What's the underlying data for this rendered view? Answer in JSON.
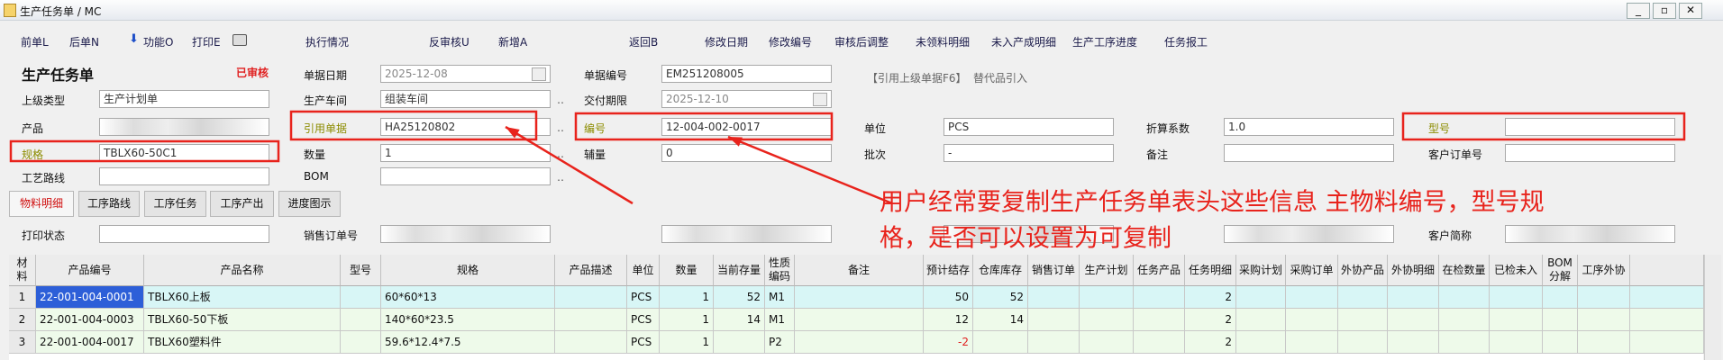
{
  "window": {
    "title": "生产任务单 / MC"
  },
  "toolbar": [
    "前单L",
    "后单N",
    "功能O",
    "打印E",
    "执行情况",
    "反审核U",
    "新增A",
    "返回B",
    "修改日期",
    "修改编号",
    "审核后调整",
    "未领料明细",
    "未入产成明细",
    "生产工序进度",
    "任务报工"
  ],
  "form": {
    "heading": "生产任务单",
    "status": "已审核",
    "links": [
      "【引用上级单据F6】",
      "替代品引入"
    ],
    "fields": [
      {
        "label": "单据日期",
        "value": "2025-12-08"
      },
      {
        "label": "单据编号",
        "value": "EM251208005"
      },
      {
        "label": "上级类型",
        "value": "生产计划单"
      },
      {
        "label": "生产车间",
        "value": "组装车间"
      },
      {
        "label": "交付期限",
        "value": "2025-12-10"
      },
      {
        "label": "产品"
      },
      {
        "label": "引用单据",
        "value": "HA25120802",
        "color": "#8c8c00"
      },
      {
        "label": "编号",
        "value": "12-004-002-0017",
        "color": "#8c8c00"
      },
      {
        "label": "单位",
        "value": "PCS"
      },
      {
        "label": "折算系数",
        "value": "1.0"
      },
      {
        "label": "型号",
        "color": "#8c8c00"
      },
      {
        "label": "规格",
        "value": "TBLX60-50C1",
        "color": "#8c8c00"
      },
      {
        "label": "数量",
        "value": "1"
      },
      {
        "label": "辅量",
        "value": "0"
      },
      {
        "label": "批次",
        "value": "-"
      },
      {
        "label": "备注"
      },
      {
        "label": "客户订单号"
      },
      {
        "label": "工艺路线"
      },
      {
        "label": "BOM"
      },
      {
        "label": "打印状态"
      },
      {
        "label": "销售订单号"
      },
      {
        "label": "客户简称"
      }
    ]
  },
  "tabs": [
    "物料明细",
    "工序路线",
    "工序任务",
    "工序产出",
    "进度图示"
  ],
  "table": {
    "headers": [
      "材料",
      "产品编号",
      "产品名称",
      "型号",
      "规格",
      "产品描述",
      "单位",
      "数量",
      "当前存量",
      "性质编码",
      "备注",
      "预计结存",
      "仓库库存",
      "销售订单",
      "生产计划",
      "任务产品",
      "任务明细",
      "采购计划",
      "采购订单",
      "外协产品",
      "外协明细",
      "在检数量",
      "已检未入",
      "BOM分解",
      "工序外协"
    ],
    "rows": [
      [
        1,
        "22-001-004-0001",
        "TBLX60上板",
        null,
        "60*60*13",
        null,
        "PCS",
        1,
        52,
        "M1",
        null,
        50,
        52,
        null,
        null,
        null,
        2,
        null,
        null,
        null,
        null,
        null,
        null,
        null,
        null
      ],
      [
        2,
        "22-001-004-0003",
        "TBLX60-50下板",
        null,
        "140*60*23.5",
        null,
        "PCS",
        1,
        14,
        "M1",
        null,
        12,
        14,
        null,
        null,
        null,
        2,
        null,
        null,
        null,
        null,
        null,
        null,
        null,
        null
      ],
      [
        3,
        "22-001-004-0017",
        "TBLX60塑料件",
        null,
        "59.6*12.4*7.5",
        null,
        "PCS",
        1,
        null,
        "P2",
        null,
        -2,
        null,
        null,
        null,
        null,
        2,
        null,
        null,
        null,
        null,
        null,
        null,
        null,
        null
      ]
    ]
  },
  "annotation": {
    "lines": [
      "用户经常要复制生产任务单表头这些信息 主物料编号，型号规",
      "格，是否可以设置为可复制"
    ],
    "color": "#e8231c"
  }
}
